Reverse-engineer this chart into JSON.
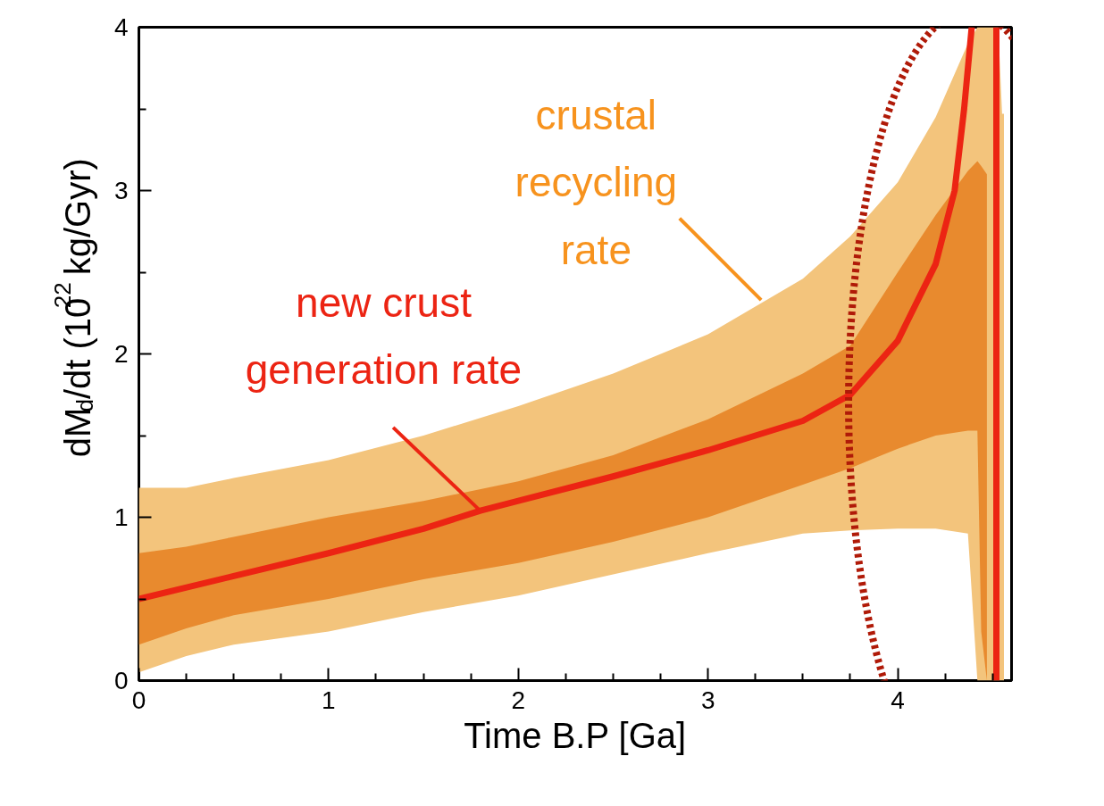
{
  "chart_data": {
    "type": "line",
    "xlabel": "Time B.P [Ga]",
    "ylabel": "dM$_{d}$/dt (10$^{22}$ kg/Gyr)",
    "xlim": [
      0,
      4.6
    ],
    "ylim": [
      0,
      4
    ],
    "grid": false,
    "xticks": [
      0,
      {
        "value": 0.25,
        "label": null
      },
      {
        "value": 0.5,
        "label": null
      },
      {
        "value": 0.75,
        "label": null
      },
      1,
      {
        "value": 1.25,
        "label": null
      },
      {
        "value": 1.5,
        "label": null
      },
      {
        "value": 1.75,
        "label": null
      },
      2,
      {
        "value": 2.25,
        "label": null
      },
      {
        "value": 2.5,
        "label": null
      },
      {
        "value": 2.75,
        "label": null
      },
      3,
      {
        "value": 3.25,
        "label": null
      },
      {
        "value": 3.5,
        "label": null
      },
      {
        "value": 3.75,
        "label": null
      },
      4,
      {
        "value": 4.25,
        "label": null
      },
      {
        "value": 4.5,
        "label": null
      }
    ],
    "yticks": [
      0,
      {
        "value": 0.5,
        "label": null
      },
      1,
      {
        "value": 1.5,
        "label": null
      },
      2,
      {
        "value": 2.5,
        "label": null
      },
      3,
      {
        "value": 3.5,
        "label": null
      },
      4
    ],
    "series": [
      {
        "type": "area",
        "color": "#f3c47c",
        "x": [
          0,
          0.25,
          0.5,
          1,
          1.5,
          2,
          2.5,
          3,
          3.5,
          3.75,
          4,
          4.2,
          4.37,
          4.42,
          4.44,
          4.47,
          4.53,
          4.55,
          4.56
        ],
        "values": [
          null,
          null,
          null,
          null,
          null,
          null,
          null,
          null,
          null,
          null,
          null,
          null,
          null,
          null,
          null,
          null,
          null,
          null,
          null
        ],
        "lower": [
          0.05,
          0.15,
          0.22,
          0.3,
          0.42,
          0.52,
          0.65,
          0.78,
          0.9,
          0.92,
          0.93,
          0.93,
          0.9,
          0,
          0,
          0,
          0,
          0,
          0
        ],
        "upper": [
          1.18,
          1.18,
          1.24,
          1.35,
          1.5,
          1.68,
          1.88,
          2.12,
          2.46,
          2.72,
          3.05,
          3.45,
          3.9,
          4.0,
          4.0,
          4.0,
          4.0,
          3.47,
          3.47
        ]
      },
      {
        "type": "area",
        "color": "#e88a2e",
        "x": [
          0,
          0.25,
          0.5,
          1,
          1.5,
          2,
          2.5,
          3,
          3.5,
          3.75,
          4,
          4.2,
          4.37,
          4.42,
          4.44,
          4.47
        ],
        "values": [
          null,
          null,
          null,
          null,
          null,
          null,
          null,
          null,
          null,
          null,
          null,
          null,
          null,
          null,
          null,
          null
        ],
        "lower": [
          0.22,
          0.32,
          0.4,
          0.5,
          0.62,
          0.72,
          0.85,
          1.0,
          1.2,
          1.3,
          1.42,
          1.5,
          1.53,
          1.53,
          0.3,
          0
        ],
        "upper": [
          0.78,
          0.82,
          0.88,
          1.0,
          1.1,
          1.22,
          1.38,
          1.6,
          1.88,
          2.05,
          2.5,
          2.85,
          3.12,
          3.18,
          3.15,
          3.1
        ]
      },
      {
        "type": "line",
        "color": "#ec2413",
        "x": [
          0,
          0.5,
          1,
          1.5,
          1.8,
          2,
          2.5,
          3,
          3.5,
          3.75,
          4,
          4.2,
          4.3,
          4.35,
          4.39
        ],
        "values": [
          0.5,
          0.64,
          0.78,
          0.93,
          1.04,
          1.1,
          1.25,
          1.41,
          1.59,
          1.75,
          2.08,
          2.55,
          3.0,
          3.5,
          4.0
        ]
      },
      {
        "type": "line",
        "color": "#ec2413",
        "x": [
          4.52,
          4.52
        ],
        "values": [
          0,
          4
        ]
      }
    ],
    "annotations": [
      {
        "text": "new crust\ngeneration rate",
        "x": 1.79,
        "y": 1.05
      },
      {
        "text": "crustal\nrecycling\nrate",
        "x": 3.28,
        "y": 2.33
      }
    ]
  }
}
